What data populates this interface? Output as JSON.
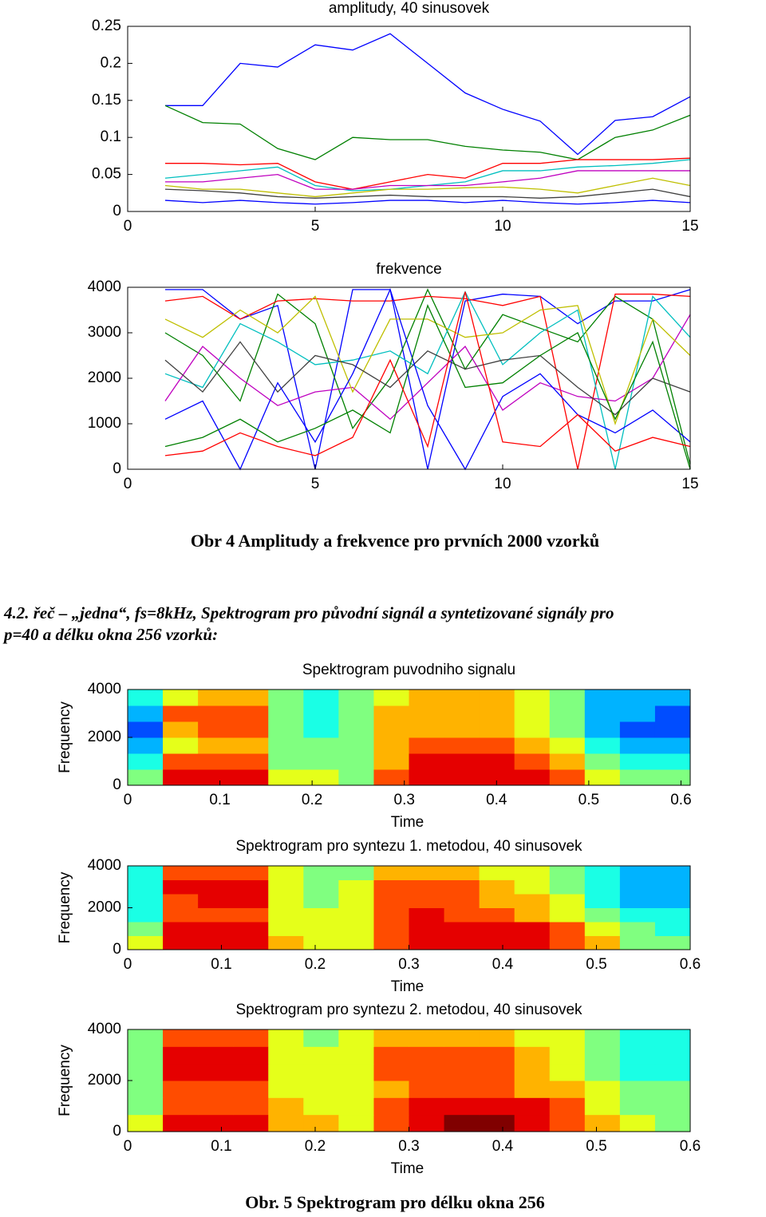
{
  "chart_data": [
    {
      "type": "line",
      "title": "amplitudy, 40  sinusovek",
      "xlim": [
        0,
        15
      ],
      "xticks": [
        0,
        5,
        10,
        15
      ],
      "ylim": [
        0,
        0.25
      ],
      "yticks": [
        0,
        0.05,
        0.1,
        0.15,
        0.2,
        0.25
      ],
      "x": [
        1,
        2,
        3,
        4,
        5,
        6,
        7,
        8,
        9,
        10,
        11,
        12,
        13,
        14,
        15
      ],
      "series": [
        {
          "color": "#0000ff",
          "values": [
            0.143,
            0.143,
            0.2,
            0.195,
            0.225,
            0.218,
            0.24,
            0.2,
            0.16,
            0.138,
            0.122,
            0.077,
            0.123,
            0.128,
            0.155
          ]
        },
        {
          "color": "#008000",
          "values": [
            0.143,
            0.12,
            0.118,
            0.085,
            0.07,
            0.1,
            0.097,
            0.097,
            0.088,
            0.083,
            0.08,
            0.07,
            0.1,
            0.11,
            0.13
          ]
        },
        {
          "color": "#ff0000",
          "values": [
            0.065,
            0.065,
            0.063,
            0.065,
            0.04,
            0.03,
            0.04,
            0.05,
            0.045,
            0.065,
            0.065,
            0.07,
            0.07,
            0.07,
            0.072
          ]
        },
        {
          "color": "#00bfbf",
          "values": [
            0.045,
            0.05,
            0.055,
            0.06,
            0.035,
            0.028,
            0.03,
            0.035,
            0.04,
            0.055,
            0.055,
            0.06,
            0.062,
            0.065,
            0.07
          ]
        },
        {
          "color": "#bf00bf",
          "values": [
            0.04,
            0.04,
            0.045,
            0.05,
            0.03,
            0.03,
            0.035,
            0.035,
            0.035,
            0.04,
            0.045,
            0.055,
            0.055,
            0.055,
            0.055
          ]
        },
        {
          "color": "#bfbf00",
          "values": [
            0.035,
            0.03,
            0.03,
            0.025,
            0.02,
            0.025,
            0.03,
            0.03,
            0.032,
            0.033,
            0.03,
            0.025,
            0.035,
            0.045,
            0.035
          ]
        },
        {
          "color": "#404040",
          "values": [
            0.03,
            0.028,
            0.025,
            0.02,
            0.018,
            0.02,
            0.022,
            0.02,
            0.02,
            0.02,
            0.018,
            0.02,
            0.025,
            0.03,
            0.02
          ]
        },
        {
          "color": "#0000ff",
          "values": [
            0.015,
            0.012,
            0.015,
            0.012,
            0.01,
            0.012,
            0.015,
            0.015,
            0.012,
            0.015,
            0.012,
            0.01,
            0.012,
            0.015,
            0.012
          ]
        }
      ]
    },
    {
      "type": "line",
      "title": "frekvence",
      "xlim": [
        0,
        15
      ],
      "xticks": [
        0,
        5,
        10,
        15
      ],
      "ylim": [
        0,
        4000
      ],
      "yticks": [
        0,
        1000,
        2000,
        3000,
        4000
      ],
      "x": [
        1,
        2,
        3,
        4,
        5,
        6,
        7,
        8,
        9,
        10,
        11,
        12,
        13,
        14,
        15
      ],
      "series": [
        {
          "color": "#0000ff",
          "values": [
            3950,
            3950,
            3300,
            3600,
            0,
            3950,
            3950,
            0,
            3700,
            3850,
            3800,
            3200,
            3700,
            3700,
            3950
          ]
        },
        {
          "color": "#008000",
          "values": [
            3000,
            2500,
            1500,
            3850,
            3200,
            900,
            2000,
            3950,
            2200,
            3400,
            3100,
            2800,
            3800,
            3300,
            100
          ]
        },
        {
          "color": "#ff0000",
          "values": [
            3700,
            3800,
            3300,
            3700,
            3750,
            3700,
            3700,
            3800,
            3750,
            3600,
            3800,
            0,
            3850,
            3850,
            3800
          ]
        },
        {
          "color": "#00bfbf",
          "values": [
            2100,
            1800,
            3200,
            2800,
            2300,
            2400,
            2600,
            2100,
            3900,
            2300,
            3000,
            3500,
            0,
            3800,
            2900
          ]
        },
        {
          "color": "#bf00bf",
          "values": [
            1500,
            2700,
            2000,
            1400,
            1700,
            1800,
            1100,
            1900,
            2700,
            1300,
            1900,
            1600,
            1500,
            2000,
            3400
          ]
        },
        {
          "color": "#bfbf00",
          "values": [
            3300,
            2900,
            3500,
            3000,
            3800,
            1700,
            3300,
            3300,
            2900,
            3000,
            3500,
            3600,
            1000,
            3300,
            2500
          ]
        },
        {
          "color": "#404040",
          "values": [
            2400,
            1700,
            2800,
            1700,
            2500,
            2300,
            1800,
            2600,
            2200,
            2400,
            2500,
            1800,
            1200,
            2000,
            1700
          ]
        },
        {
          "color": "#0000ff",
          "values": [
            1100,
            1500,
            0,
            1900,
            600,
            2100,
            3950,
            1400,
            0,
            1600,
            2100,
            1200,
            800,
            1300,
            600
          ]
        },
        {
          "color": "#008000",
          "values": [
            500,
            700,
            1100,
            600,
            900,
            1300,
            800,
            3600,
            1800,
            1900,
            2500,
            3000,
            1100,
            2800,
            0
          ]
        },
        {
          "color": "#ff0000",
          "values": [
            300,
            400,
            800,
            500,
            300,
            700,
            2400,
            500,
            3900,
            600,
            500,
            1200,
            400,
            700,
            500
          ]
        }
      ]
    },
    {
      "type": "heatmap",
      "title": "Spektrogram puvodniho signalu",
      "xlabel": "Time",
      "ylabel": "Frequency",
      "xlim": [
        0,
        0.61
      ],
      "xticks": [
        0,
        0.1,
        0.2,
        0.3,
        0.4,
        0.5,
        0.6
      ],
      "ylim": [
        0,
        4000
      ],
      "yticks": [
        0,
        2000,
        4000
      ],
      "clim": [
        0,
        10
      ],
      "z": [
        [
          5,
          9,
          9,
          9,
          6,
          6,
          5,
          8,
          9,
          9,
          9,
          9,
          8,
          6,
          5,
          5
        ],
        [
          4,
          8,
          8,
          8,
          5,
          5,
          5,
          7,
          9,
          9,
          9,
          8,
          7,
          5,
          4,
          4
        ],
        [
          3,
          6,
          7,
          7,
          5,
          5,
          5,
          7,
          8,
          8,
          8,
          7,
          6,
          4,
          3,
          3
        ],
        [
          2,
          7,
          8,
          8,
          5,
          4,
          5,
          7,
          7,
          7,
          7,
          6,
          5,
          3,
          2,
          2
        ],
        [
          3,
          8,
          8,
          8,
          5,
          4,
          5,
          7,
          7,
          7,
          7,
          6,
          5,
          3,
          3,
          2
        ],
        [
          4,
          6,
          7,
          7,
          5,
          4,
          5,
          6,
          7,
          7,
          7,
          6,
          5,
          3,
          3,
          3
        ]
      ]
    },
    {
      "type": "heatmap",
      "title": "Spektrogram pro syntezu 1. metodou,  40 sinusovek",
      "xlabel": "Time",
      "ylabel": "Frequency",
      "xlim": [
        0,
        0.6
      ],
      "xticks": [
        0,
        0.1,
        0.2,
        0.3,
        0.4,
        0.5,
        0.6
      ],
      "ylim": [
        0,
        4000
      ],
      "yticks": [
        0,
        2000,
        4000
      ],
      "clim": [
        0,
        10
      ],
      "z": [
        [
          6,
          9,
          9,
          9,
          7,
          6,
          6,
          8,
          9,
          9,
          9,
          9,
          8,
          7,
          5,
          5
        ],
        [
          5,
          9,
          9,
          9,
          6,
          6,
          6,
          8,
          9,
          9,
          9,
          9,
          8,
          6,
          5,
          4
        ],
        [
          4,
          8,
          8,
          8,
          6,
          6,
          6,
          8,
          9,
          8,
          8,
          7,
          6,
          5,
          4,
          4
        ],
        [
          4,
          8,
          9,
          9,
          6,
          5,
          6,
          8,
          8,
          8,
          7,
          7,
          6,
          4,
          3,
          3
        ],
        [
          4,
          9,
          9,
          9,
          6,
          5,
          6,
          8,
          8,
          8,
          7,
          6,
          5,
          4,
          3,
          3
        ],
        [
          4,
          8,
          8,
          8,
          6,
          5,
          5,
          7,
          7,
          7,
          6,
          6,
          5,
          4,
          3,
          3
        ]
      ]
    },
    {
      "type": "heatmap",
      "title": "Spektrogram pro syntezu 2. metodou,  40 sinusovek",
      "xlabel": "Time",
      "ylabel": "Frequency",
      "xlim": [
        0,
        0.6
      ],
      "xticks": [
        0,
        0.1,
        0.2,
        0.3,
        0.4,
        0.5,
        0.6
      ],
      "ylim": [
        0,
        4000
      ],
      "yticks": [
        0,
        2000,
        4000
      ],
      "clim": [
        0,
        10
      ],
      "z": [
        [
          6,
          9,
          9,
          9,
          7,
          7,
          6,
          8,
          9,
          10,
          10,
          9,
          8,
          7,
          6,
          5
        ],
        [
          5,
          8,
          8,
          8,
          7,
          6,
          6,
          8,
          9,
          9,
          9,
          9,
          8,
          6,
          5,
          5
        ],
        [
          5,
          8,
          8,
          8,
          6,
          6,
          6,
          7,
          8,
          8,
          8,
          7,
          7,
          6,
          5,
          5
        ],
        [
          5,
          9,
          9,
          9,
          6,
          6,
          6,
          8,
          8,
          8,
          8,
          7,
          6,
          5,
          4,
          4
        ],
        [
          5,
          9,
          9,
          9,
          6,
          6,
          6,
          8,
          8,
          8,
          8,
          7,
          6,
          5,
          4,
          4
        ],
        [
          5,
          8,
          8,
          8,
          6,
          5,
          6,
          7,
          7,
          7,
          7,
          6,
          6,
          5,
          4,
          4
        ]
      ]
    }
  ],
  "text": {
    "figure4_caption": "Obr 4 Amplitudy a frekvence pro prvních 2000 vzorků",
    "section_lines": [
      "4.2. řeč – „jedna“, fs=8kHz, Spektrogram pro původní signál a syntetizované signály pro",
      "p=40 a délku okna 256 vzorků:"
    ],
    "figure5_caption": "Obr. 5 Spektrogram pro délku okna 256"
  }
}
